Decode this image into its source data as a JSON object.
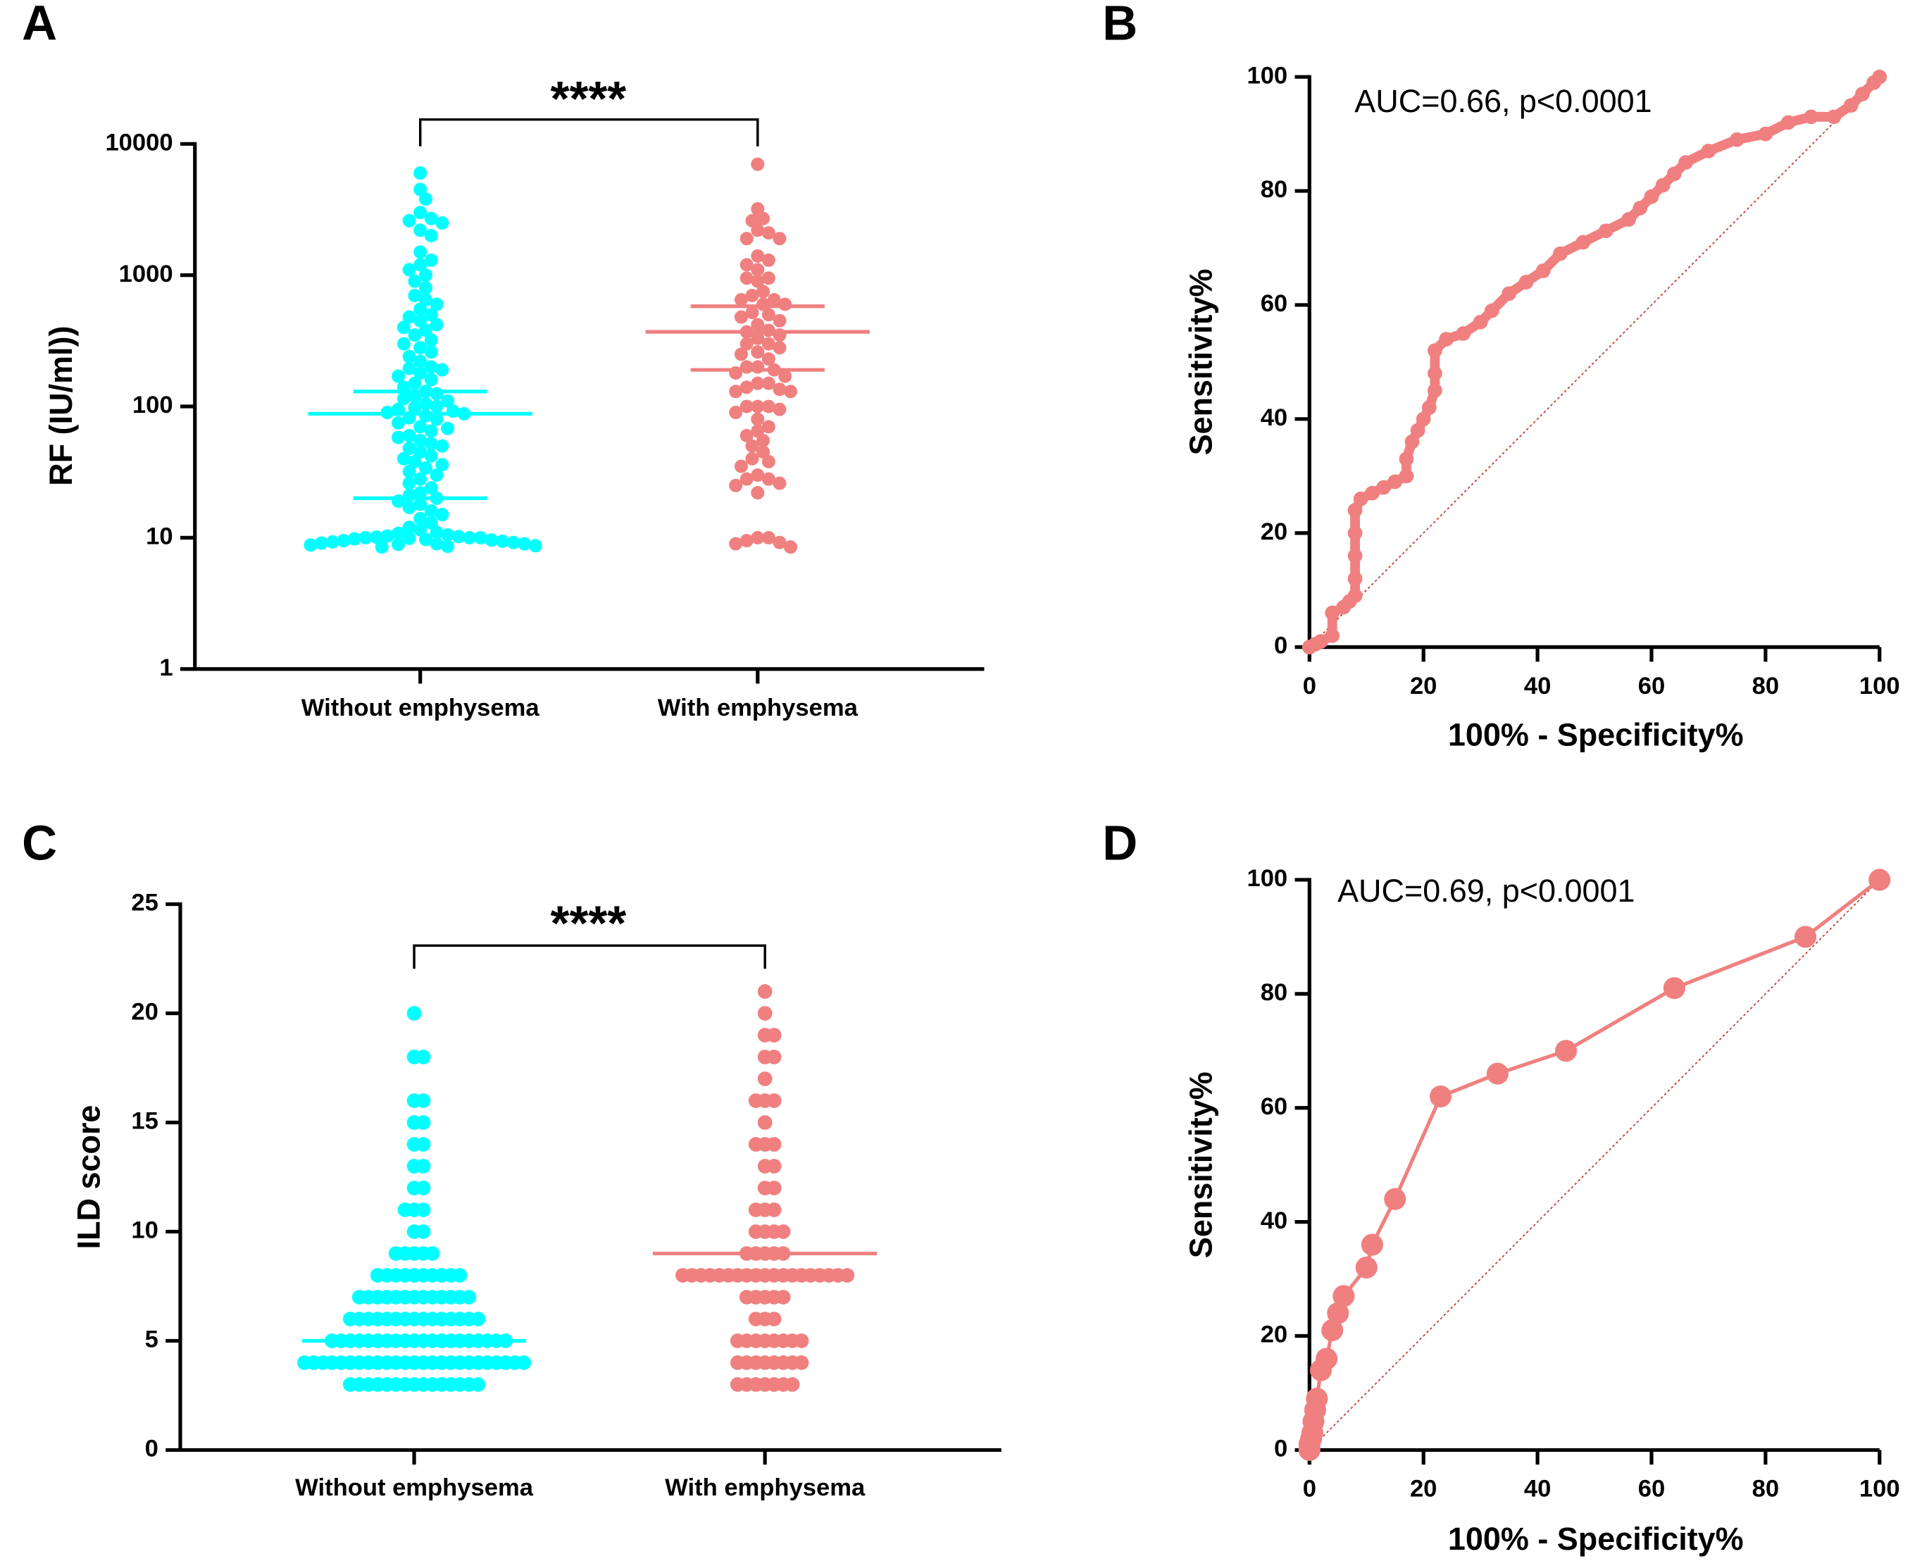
{
  "chart_data": [
    {
      "type": "dotplot",
      "panel": "A",
      "ylabel": "RF (IU/ml))",
      "ylog": true,
      "ylim": [
        1,
        10000
      ],
      "yticks": [
        1,
        10,
        100,
        1000,
        10000
      ],
      "categories": [
        "Without emphysema",
        "With emphysema"
      ],
      "annotation": "****",
      "groups": [
        {
          "color": "#00ffff",
          "median": 88,
          "quartiles": [
            20,
            130
          ],
          "values": [
            6000,
            4500,
            3800,
            3000,
            2700,
            2600,
            2500,
            2200,
            2000,
            1500,
            1300,
            1200,
            1100,
            1000,
            900,
            800,
            700,
            650,
            600,
            550,
            500,
            480,
            450,
            420,
            400,
            380,
            350,
            320,
            300,
            280,
            260,
            240,
            220,
            200,
            195,
            190,
            180,
            170,
            160,
            150,
            140,
            130,
            125,
            120,
            115,
            110,
            105,
            100,
            98,
            95,
            92,
            90,
            88,
            85,
            82,
            80,
            75,
            70,
            68,
            65,
            60,
            58,
            55,
            52,
            50,
            48,
            45,
            42,
            40,
            38,
            36,
            34,
            32,
            30,
            28,
            26,
            24,
            22,
            21,
            20,
            19,
            18,
            17,
            16,
            15,
            14,
            13,
            12,
            11.5,
            11,
            10.8,
            10.5,
            10.3,
            10.2,
            10.1,
            10,
            10,
            10,
            9.9,
            9.8,
            9.7,
            9.6,
            9.5,
            9.4,
            9.3,
            9.2,
            9.1,
            9,
            9,
            8.9,
            8.8,
            8.7,
            8.6,
            8.5
          ]
        },
        {
          "color": "#f08080",
          "median": 370,
          "quartiles": [
            190,
            580
          ],
          "values": [
            7000,
            3200,
            2700,
            2600,
            2200,
            2100,
            1900,
            1900,
            1400,
            1300,
            1200,
            1100,
            950,
            950,
            900,
            750,
            700,
            650,
            650,
            600,
            600,
            520,
            500,
            480,
            450,
            420,
            380,
            370,
            350,
            330,
            300,
            300,
            280,
            260,
            250,
            230,
            200,
            200,
            190,
            180,
            170,
            150,
            150,
            140,
            135,
            130,
            130,
            100,
            100,
            100,
            95,
            90,
            80,
            70,
            65,
            60,
            55,
            50,
            45,
            40,
            38,
            35,
            30,
            28,
            28,
            26,
            25,
            22,
            10,
            10,
            9.5,
            9.2,
            9.0,
            8.5
          ]
        }
      ]
    },
    {
      "type": "line",
      "panel": "B",
      "xlabel": "100% - Specificity%",
      "ylabel": "Sensitivity%",
      "annotation": "AUC=0.66, p<0.0001",
      "color": "#f08080",
      "connected": false,
      "xlim": [
        0,
        100
      ],
      "ylim": [
        0,
        100
      ],
      "xticks": [
        0,
        20,
        40,
        60,
        80,
        100
      ],
      "yticks": [
        0,
        20,
        40,
        60,
        80,
        100
      ],
      "x": [
        0,
        1,
        2,
        4,
        4,
        6,
        7,
        8,
        8,
        8,
        8,
        8,
        9,
        11,
        13,
        15,
        17,
        17,
        18,
        19,
        20,
        21,
        22,
        22,
        22,
        24,
        27,
        30,
        32,
        35,
        38,
        41,
        44,
        48,
        52,
        56,
        58,
        60,
        62,
        64,
        66,
        70,
        75,
        80,
        84,
        88,
        92,
        95,
        97,
        99,
        100
      ],
      "y": [
        0,
        0.5,
        1,
        2,
        6,
        7,
        8,
        9,
        12,
        16,
        20,
        24,
        26,
        27,
        28,
        29,
        30,
        33,
        36,
        38,
        40,
        42,
        45,
        48,
        52,
        54,
        55,
        57,
        59,
        62,
        64,
        66,
        69,
        71,
        73,
        75,
        77,
        79,
        81,
        83,
        85,
        87,
        89,
        90,
        92,
        93,
        93,
        95,
        97,
        99,
        100
      ]
    },
    {
      "type": "dotplot",
      "panel": "C",
      "ylabel": "ILD score",
      "ylog": false,
      "ylim": [
        0,
        25
      ],
      "yticks": [
        0,
        5,
        10,
        15,
        20,
        25
      ],
      "categories": [
        "Without emphysema",
        "With emphysema"
      ],
      "annotation": "****",
      "groups": [
        {
          "color": "#00ffff",
          "median": 5,
          "values": [
            20,
            18,
            18,
            16,
            16,
            15,
            15,
            14,
            14,
            13,
            13,
            12,
            12,
            11,
            11,
            11,
            10,
            10,
            9,
            9,
            9,
            9,
            9,
            8,
            8,
            8,
            8,
            8,
            8,
            8,
            8,
            8,
            8,
            7,
            7,
            7,
            7,
            7,
            7,
            7,
            7,
            7,
            7,
            7,
            7,
            7,
            6,
            6,
            6,
            6,
            6,
            6,
            6,
            6,
            6,
            6,
            6,
            6,
            6,
            6,
            6,
            5,
            5,
            5,
            5,
            5,
            5,
            5,
            5,
            5,
            5,
            5,
            5,
            5,
            5,
            5,
            5,
            5,
            5,
            5,
            5,
            4,
            4,
            4,
            4,
            4,
            4,
            4,
            4,
            4,
            4,
            4,
            4,
            4,
            4,
            4,
            4,
            4,
            4,
            4,
            4,
            4,
            4,
            4,
            4,
            4,
            3,
            3,
            3,
            3,
            3,
            3,
            3,
            3,
            3,
            3,
            3,
            3,
            3,
            3,
            3
          ]
        },
        {
          "color": "#f08080",
          "median": 9,
          "values": [
            21,
            20,
            19,
            19,
            18,
            18,
            17,
            16,
            16,
            16,
            15,
            14,
            14,
            14,
            13,
            13,
            12,
            12,
            11,
            11,
            11,
            10,
            10,
            10,
            10,
            9,
            9,
            9,
            9,
            9,
            8,
            8,
            8,
            8,
            8,
            8,
            8,
            8,
            8,
            8,
            8,
            8,
            8,
            8,
            8,
            8,
            8,
            8,
            8,
            7,
            7,
            7,
            7,
            7,
            6,
            6,
            6,
            5,
            5,
            5,
            5,
            5,
            5,
            5,
            5,
            4,
            4,
            4,
            4,
            4,
            4,
            4,
            4,
            3,
            3,
            3,
            3,
            3,
            3,
            3
          ]
        }
      ]
    },
    {
      "type": "line",
      "panel": "D",
      "xlabel": "100% - Specificity%",
      "ylabel": "Sensitivity%",
      "annotation": "AUC=0.69, p<0.0001",
      "color": "#f08080",
      "connected": true,
      "xlim": [
        0,
        100
      ],
      "ylim": [
        0,
        100
      ],
      "xticks": [
        0,
        20,
        40,
        60,
        80,
        100
      ],
      "yticks": [
        0,
        20,
        40,
        60,
        80,
        100
      ],
      "x": [
        0,
        0,
        0.3,
        0.5,
        0.7,
        1,
        1.3,
        2,
        3,
        4,
        5,
        6,
        10,
        11,
        15,
        23,
        33,
        45,
        64,
        87,
        100
      ],
      "y": [
        0,
        1,
        2,
        3,
        5,
        7,
        9,
        14,
        16,
        21,
        24,
        27,
        32,
        36,
        44,
        62,
        66,
        70,
        81,
        90,
        100
      ]
    }
  ]
}
